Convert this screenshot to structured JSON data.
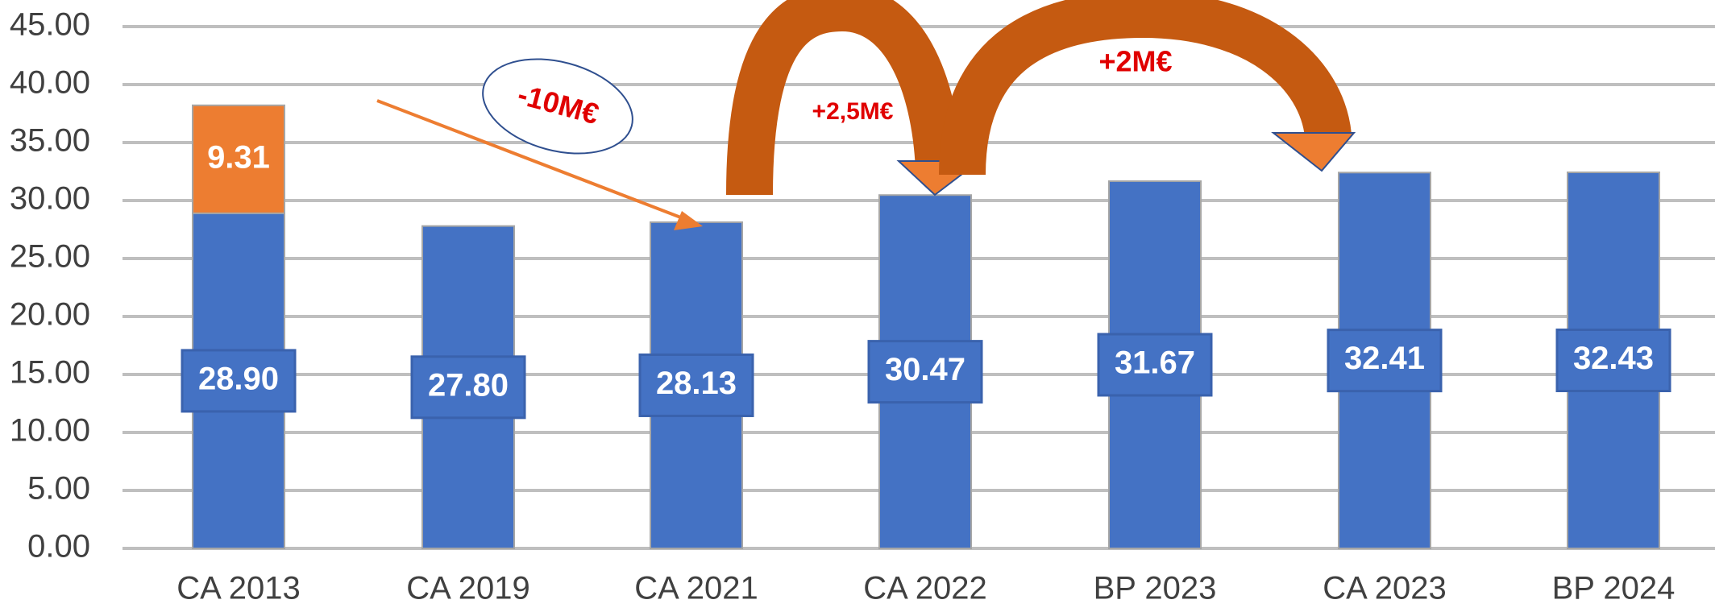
{
  "chart_data": {
    "type": "stacked_bar",
    "categories": [
      "CA 2013",
      "CA 2019",
      "CA 2021",
      "CA 2022",
      "BP 2023",
      "CA 2023",
      "BP 2024"
    ],
    "series": [
      {
        "color": "#4472c4",
        "values": [
          28.9,
          27.8,
          28.13,
          30.47,
          31.67,
          32.41,
          32.43
        ],
        "value_labels": [
          "28.90",
          "27.80",
          "28.13",
          "30.47",
          "31.67",
          "32.41",
          "32.43"
        ]
      },
      {
        "color": "#ed7d31",
        "values": [
          9.31,
          null,
          null,
          null,
          null,
          null,
          null
        ],
        "value_labels": [
          "9.31",
          null,
          null,
          null,
          null,
          null,
          null
        ]
      }
    ],
    "ylim": [
      0,
      45
    ],
    "yticks": [
      {
        "value": 0,
        "label": "0.00"
      },
      {
        "value": 5,
        "label": "5.00"
      },
      {
        "value": 10,
        "label": "10.00"
      },
      {
        "value": 15,
        "label": "15.00"
      },
      {
        "value": 20,
        "label": "20.00"
      },
      {
        "value": 25,
        "label": "25.00"
      },
      {
        "value": 30,
        "label": "30.00"
      },
      {
        "value": 35,
        "label": "35.00"
      },
      {
        "value": 40,
        "label": "40.00"
      },
      {
        "value": 45,
        "label": "45.00"
      }
    ],
    "grid": true,
    "annotations": [
      "-10M€",
      "+2,5M€",
      "+2M€"
    ]
  }
}
